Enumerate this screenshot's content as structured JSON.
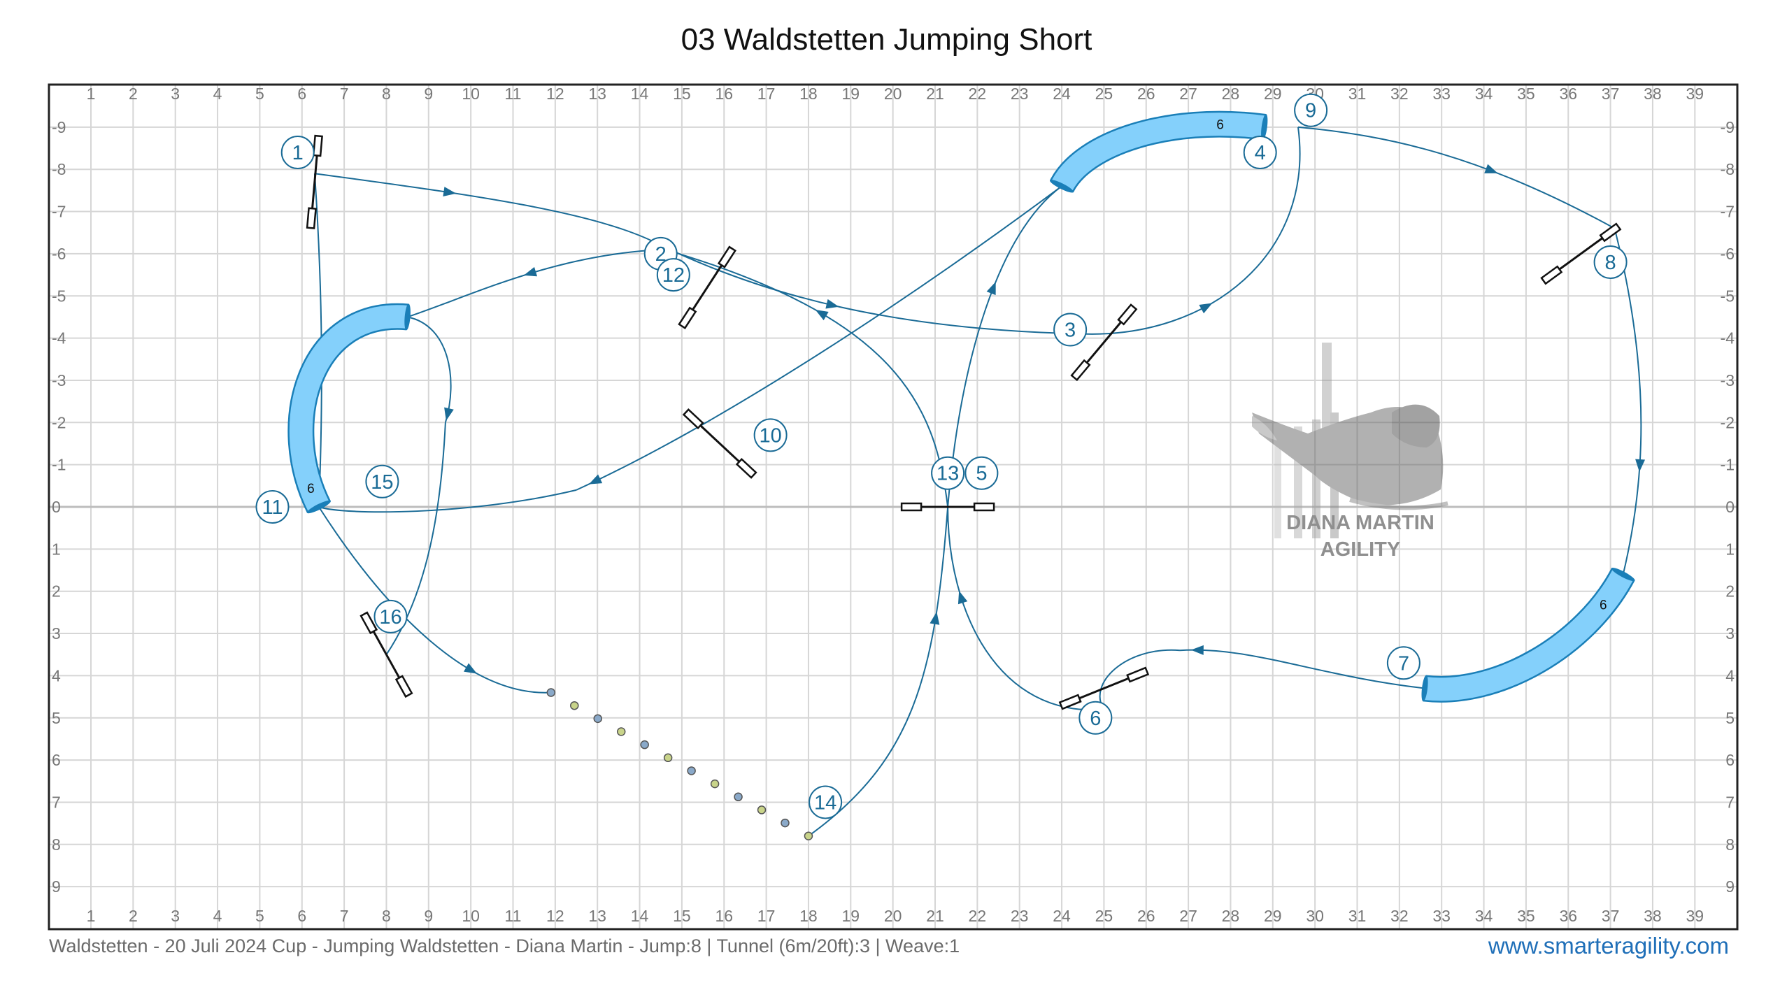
{
  "title": "03 Waldstetten Jumping Short",
  "footer": {
    "info": "Waldstetten - 20 Juli 2024 Cup - Jumping Waldstetten - Diana Martin - Jump:8 | Tunnel (6m/20ft):3 | Weave:1",
    "website": "www.smarteragility.com"
  },
  "grid": {
    "x_labels": [
      "1",
      "2",
      "3",
      "4",
      "5",
      "6",
      "7",
      "8",
      "9",
      "10",
      "11",
      "12",
      "13",
      "14",
      "15",
      "16",
      "17",
      "18",
      "19",
      "20",
      "21",
      "22",
      "23",
      "24",
      "25",
      "26",
      "27",
      "28",
      "29",
      "30",
      "31",
      "32",
      "33",
      "34",
      "35",
      "36",
      "37",
      "38",
      "39"
    ],
    "y_labels": [
      "-9",
      "-8",
      "-7",
      "-6",
      "-5",
      "-4",
      "-3",
      "-2",
      "-1",
      "0",
      "1",
      "2",
      "3",
      "4",
      "5",
      "6",
      "7",
      "8",
      "9"
    ]
  },
  "obstacles": {
    "jumps": [
      {
        "n": "1",
        "x": 6.3,
        "y": -7.7,
        "angle": -85
      },
      {
        "n": "2",
        "x": 15.6,
        "y": -5.2,
        "angle": -57
      },
      {
        "n": "3",
        "x": 25.0,
        "y": -3.9,
        "angle": -50
      },
      {
        "n": "6",
        "x": 25.0,
        "y": 4.3,
        "angle": -22
      },
      {
        "n": "8",
        "x": 36.3,
        "y": -6.0,
        "angle": -36
      },
      {
        "n": "10",
        "x": 15.9,
        "y": -1.5,
        "angle": 43
      },
      {
        "n": "13",
        "x": 21.3,
        "y": 0.0,
        "angle": 0
      },
      {
        "n": "16",
        "x": 8.0,
        "y": 3.5,
        "angle": 61
      }
    ],
    "tunnels": [
      {
        "label": "6",
        "centerline": [
          [
            24.0,
            -7.6
          ],
          [
            24.5,
            -8.6
          ],
          [
            26.5,
            -9.3
          ],
          [
            28.8,
            -9.0
          ]
        ]
      },
      {
        "label": "6",
        "centerline": [
          [
            8.5,
            -4.5
          ],
          [
            6.2,
            -4.7
          ],
          [
            5.4,
            -2.0
          ],
          [
            6.4,
            0.0
          ]
        ]
      },
      {
        "label": "6",
        "centerline": [
          [
            32.6,
            4.3
          ],
          [
            34.3,
            4.5
          ],
          [
            36.4,
            3.3
          ],
          [
            37.3,
            1.6
          ]
        ]
      }
    ],
    "weave": {
      "start": [
        11.9,
        4.4
      ],
      "end": [
        18.0,
        7.8
      ],
      "count": 12
    }
  },
  "numbers": [
    {
      "t": "1",
      "x": 5.9,
      "y": -8.4
    },
    {
      "t": "2",
      "x": 14.5,
      "y": -6.0
    },
    {
      "t": "12",
      "x": 14.8,
      "y": -5.5
    },
    {
      "t": "3",
      "x": 24.2,
      "y": -4.2
    },
    {
      "t": "4",
      "x": 28.7,
      "y": -8.4
    },
    {
      "t": "9",
      "x": 29.9,
      "y": -9.4
    },
    {
      "t": "5",
      "x": 22.1,
      "y": -0.8
    },
    {
      "t": "13",
      "x": 21.3,
      "y": -0.8
    },
    {
      "t": "6",
      "x": 24.8,
      "y": 5.0
    },
    {
      "t": "7",
      "x": 32.1,
      "y": 3.7
    },
    {
      "t": "8",
      "x": 37.0,
      "y": -5.8
    },
    {
      "t": "10",
      "x": 17.1,
      "y": -1.7
    },
    {
      "t": "11",
      "x": 5.3,
      "y": 0.0
    },
    {
      "t": "15",
      "x": 7.9,
      "y": -0.6
    },
    {
      "t": "16",
      "x": 8.1,
      "y": 2.6
    },
    {
      "t": "14",
      "x": 18.4,
      "y": 7.0
    }
  ],
  "path": [
    {
      "d": "6.3,-7.9 C 10,-7.4 13,-7 14.5,-6.2",
      "arrow": [
        9.5,
        -7.4
      ]
    },
    {
      "d": "14.5,-6.2 C 17,-5 20,-4.2 24.5,-4.1",
      "arrow": [
        18.5,
        -4.5
      ]
    },
    {
      "d": "24.5,-4.1 C 27.5,-4 30,-6 29.6,-9.0",
      "arrow": [
        27.4,
        -4.8
      ]
    },
    {
      "d": "29.6,-9.0 C 31.8,-8.8 34,-8.3 37.1,-6.6",
      "arrow": [
        34.1,
        -7.7
      ]
    },
    {
      "d": "37.1,-6.6 C 38,-3 37.8,-0.5 37.3,1.6",
      "arrow": [
        37.6,
        -1.0
      ]
    },
    {
      "d": "32.6,4.3 C 30,4.0 28.5,3.3 26.8,3.4",
      "arrow": [
        27.2,
        3.4
      ]
    },
    {
      "d": "26.8,3.4 C 25.5,3.3 24.6,4.2 25.0,4.8",
      "arrow": null
    },
    {
      "d": "25.0,4.8 C 22.5,5.0 21.3,2.5 21.3,0.0",
      "arrow": [
        21.7,
        2.1
      ]
    },
    {
      "d": "21.3,0.0 C 21.0,-2.5 20.0,-4.5 14.6,-6.1",
      "arrow": [
        18.0,
        -4.1
      ]
    },
    {
      "d": "14.6,-6.1 C 12.0,-6.0 10.0,-5.0 8.5,-4.5",
      "arrow": [
        11.5,
        -5.2
      ]
    },
    {
      "d": "8.5,-4.5 C 9.5,-4.3 9.7,-3 9.4,-2.0",
      "arrow": [
        9.4,
        -2.2
      ]
    },
    {
      "d": "9.4,-2.0 C 9.3,0 9,2 8.0,3.5",
      "arrow": null
    },
    {
      "d": "6.4,0.0 C 8.0,2.5 10.0,4.5 11.9,4.4",
      "arrow": [
        10.0,
        3.9
      ]
    },
    {
      "d": "18.0,7.8 C 20.5,6 21,4 21.3,0.0",
      "arrow": [
        20.8,
        2.6
      ]
    },
    {
      "d": "21.3,0.0 C 21.6,-3.5 22.5,-6.5 24.0,-7.6",
      "arrow": [
        22.6,
        -5.1
      ]
    },
    {
      "d": "24.0,-7.6 C 20.5,-5 16,-2 12.5,-0.4",
      "arrow": [
        13.0,
        -0.4
      ]
    },
    {
      "d": "12.5,-0.4 C 10,0.2 7,0.2 6.4,0.0",
      "arrow": null
    },
    {
      "d": "6.3,-7.9 C 6.5,-5 6.5,-2.5 6.4,0.0",
      "arrow": null
    }
  ],
  "logo": {
    "line1": "DIANA MARTIN",
    "line2": "AGILITY"
  },
  "colors": {
    "path": "#1a6b96",
    "tunnel_fill": "#84d0fb",
    "tunnel_stroke": "#1a7fb8",
    "number": "#1a6b96",
    "grid": "#d6d6d6",
    "axis_text": "#777777"
  }
}
